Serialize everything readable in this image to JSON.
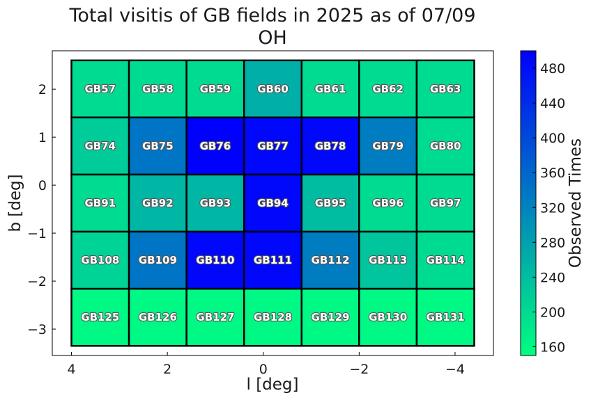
{
  "chart_data": {
    "type": "heatmap",
    "title": [
      "Total visitis of GB fields in 2025 as of 07/09",
      "OH"
    ],
    "xlabel": "l [deg]",
    "ylabel": "b [deg]",
    "colorbar_label": "Observed Times",
    "xlim": [
      4.4,
      -4.8
    ],
    "ylim": [
      -3.55,
      2.8
    ],
    "x_ticks": [
      4,
      2,
      0,
      -2,
      -4
    ],
    "x_tick_labels": [
      "4",
      "2",
      "0",
      "−2",
      "−4"
    ],
    "y_ticks": [
      2,
      1,
      0,
      -1,
      -2,
      -3
    ],
    "y_tick_labels": [
      "2",
      "1",
      "0",
      "−1",
      "−2",
      "−3"
    ],
    "colorbar_range": [
      150,
      500
    ],
    "colorbar_ticks": [
      160,
      200,
      240,
      280,
      320,
      360,
      400,
      440,
      480
    ],
    "colormap": [
      "#00ff80",
      "#0000ff"
    ],
    "grid": false,
    "cell_edges": {
      "l": [
        4.0,
        2.8,
        1.6,
        0.4,
        -0.8,
        -2.0,
        -3.2,
        -4.4
      ],
      "b": [
        2.6,
        1.41,
        0.22,
        -0.97,
        -2.16,
        -3.35
      ]
    },
    "cells": [
      {
        "name": "GB57",
        "row": 0,
        "col": 0,
        "value": 200
      },
      {
        "name": "GB58",
        "row": 0,
        "col": 1,
        "value": 200
      },
      {
        "name": "GB59",
        "row": 0,
        "col": 2,
        "value": 200
      },
      {
        "name": "GB60",
        "row": 0,
        "col": 3,
        "value": 260
      },
      {
        "name": "GB61",
        "row": 0,
        "col": 4,
        "value": 200
      },
      {
        "name": "GB62",
        "row": 0,
        "col": 5,
        "value": 200
      },
      {
        "name": "GB63",
        "row": 0,
        "col": 6,
        "value": 200
      },
      {
        "name": "GB74",
        "row": 1,
        "col": 0,
        "value": 220
      },
      {
        "name": "GB75",
        "row": 1,
        "col": 1,
        "value": 340
      },
      {
        "name": "GB76",
        "row": 1,
        "col": 2,
        "value": 500
      },
      {
        "name": "GB77",
        "row": 1,
        "col": 3,
        "value": 490
      },
      {
        "name": "GB78",
        "row": 1,
        "col": 4,
        "value": 490
      },
      {
        "name": "GB79",
        "row": 1,
        "col": 5,
        "value": 330
      },
      {
        "name": "GB80",
        "row": 1,
        "col": 6,
        "value": 200
      },
      {
        "name": "GB91",
        "row": 2,
        "col": 0,
        "value": 200
      },
      {
        "name": "GB92",
        "row": 2,
        "col": 1,
        "value": 250
      },
      {
        "name": "GB93",
        "row": 2,
        "col": 2,
        "value": 250
      },
      {
        "name": "GB94",
        "row": 2,
        "col": 3,
        "value": 490
      },
      {
        "name": "GB95",
        "row": 2,
        "col": 4,
        "value": 240
      },
      {
        "name": "GB96",
        "row": 2,
        "col": 5,
        "value": 200
      },
      {
        "name": "GB97",
        "row": 2,
        "col": 6,
        "value": 200
      },
      {
        "name": "GB108",
        "row": 3,
        "col": 0,
        "value": 210
      },
      {
        "name": "GB109",
        "row": 3,
        "col": 1,
        "value": 340
      },
      {
        "name": "GB110",
        "row": 3,
        "col": 2,
        "value": 490
      },
      {
        "name": "GB111",
        "row": 3,
        "col": 3,
        "value": 490
      },
      {
        "name": "GB112",
        "row": 3,
        "col": 4,
        "value": 330
      },
      {
        "name": "GB113",
        "row": 3,
        "col": 5,
        "value": 230
      },
      {
        "name": "GB114",
        "row": 3,
        "col": 6,
        "value": 200
      },
      {
        "name": "GB125",
        "row": 4,
        "col": 0,
        "value": 160
      },
      {
        "name": "GB126",
        "row": 4,
        "col": 1,
        "value": 160
      },
      {
        "name": "GB127",
        "row": 4,
        "col": 2,
        "value": 160
      },
      {
        "name": "GB128",
        "row": 4,
        "col": 3,
        "value": 160
      },
      {
        "name": "GB129",
        "row": 4,
        "col": 4,
        "value": 160
      },
      {
        "name": "GB130",
        "row": 4,
        "col": 5,
        "value": 160
      },
      {
        "name": "GB131",
        "row": 4,
        "col": 6,
        "value": 160
      }
    ]
  }
}
